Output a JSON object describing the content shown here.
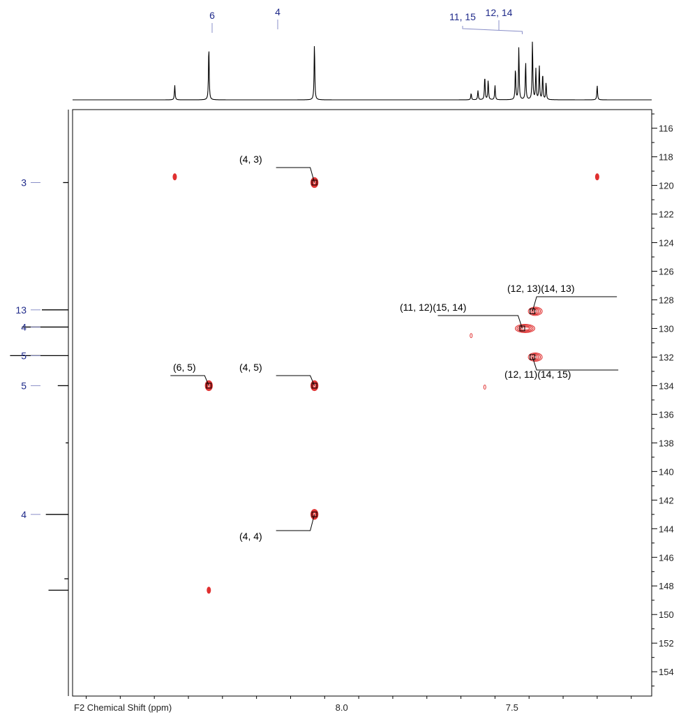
{
  "chart_data": {
    "type": "scatter",
    "title": "",
    "xlabel": "F2 Chemical Shift (ppm)",
    "ylabel": "",
    "x_reversed": true,
    "y_reversed": true,
    "xlim": [
      8.79,
      7.09
    ],
    "ylim": [
      114.7,
      155.7
    ],
    "x_major_ticks": [
      8.0,
      7.5
    ],
    "x_tick_labels": [
      "8.0",
      "7.5"
    ],
    "y_ticks": [
      116,
      118,
      120,
      122,
      124,
      126,
      128,
      130,
      132,
      134,
      136,
      138,
      140,
      142,
      144,
      146,
      148,
      150,
      152,
      154
    ],
    "y_tick_labels": [
      "116",
      "118",
      "120",
      "122",
      "124",
      "126",
      "128",
      "130",
      "132",
      "134",
      "136",
      "138",
      "140",
      "142",
      "144",
      "146",
      "148",
      "150",
      "152",
      "154"
    ],
    "grid": false,
    "contour_color": "#e03030",
    "marker_color": "#000000",
    "assignment_color": "#1f2a8a",
    "cross_peaks": [
      {
        "x": 8.08,
        "y": 119.8,
        "label": "(4, 3)",
        "assigned": true
      },
      {
        "x": 8.39,
        "y": 134.0,
        "label": "(6, 5)",
        "assigned": true
      },
      {
        "x": 8.08,
        "y": 134.0,
        "label": "(4, 5)",
        "assigned": true
      },
      {
        "x": 8.08,
        "y": 143.0,
        "label": "(4, 4)",
        "assigned": true
      },
      {
        "x": 7.44,
        "y": 128.8,
        "label": "(12, 13)(14, 13)",
        "assigned": true
      },
      {
        "x": 7.47,
        "y": 130.0,
        "label": "(11, 12)(15, 14)",
        "assigned": true
      },
      {
        "x": 7.44,
        "y": 132.0,
        "label": "(12, 11)(14, 15)",
        "assigned": true
      },
      {
        "x": 8.49,
        "y": 119.4,
        "label": "",
        "assigned": false
      },
      {
        "x": 7.25,
        "y": 119.4,
        "label": "",
        "assigned": false
      },
      {
        "x": 8.39,
        "y": 148.3,
        "label": "",
        "assigned": false
      },
      {
        "x": 7.58,
        "y": 134.1,
        "label": "",
        "assigned": false
      },
      {
        "x": 7.62,
        "y": 130.5,
        "label": "",
        "assigned": false
      }
    ],
    "f2_assignments": [
      {
        "label": "6",
        "x": 8.39
      },
      {
        "label": "4",
        "x": 8.08
      },
      {
        "label": "11, 15",
        "x": 7.47
      },
      {
        "label": "12, 14",
        "x": 7.44
      }
    ],
    "f1_assignments": [
      {
        "label": "3",
        "y": 119.8
      },
      {
        "label": "13",
        "y": 128.7
      },
      {
        "label": "4",
        "y": 129.9
      },
      {
        "label": "5",
        "y": 131.9
      },
      {
        "label": "5",
        "y": 134.0
      },
      {
        "label": "4",
        "y": 143.0
      }
    ],
    "f2_spectrum_peaks": [
      {
        "x": 8.49,
        "h": 0.22
      },
      {
        "x": 8.39,
        "h": 0.82
      },
      {
        "x": 8.08,
        "h": 0.86
      },
      {
        "x": 7.62,
        "h": 0.1
      },
      {
        "x": 7.6,
        "h": 0.14
      },
      {
        "x": 7.58,
        "h": 0.36
      },
      {
        "x": 7.57,
        "h": 0.3
      },
      {
        "x": 7.55,
        "h": 0.22
      },
      {
        "x": 7.49,
        "h": 0.48
      },
      {
        "x": 7.48,
        "h": 0.8
      },
      {
        "x": 7.46,
        "h": 0.58
      },
      {
        "x": 7.44,
        "h": 0.9
      },
      {
        "x": 7.43,
        "h": 0.46
      },
      {
        "x": 7.42,
        "h": 0.52
      },
      {
        "x": 7.41,
        "h": 0.4
      },
      {
        "x": 7.4,
        "h": 0.26
      },
      {
        "x": 7.25,
        "h": 0.22
      }
    ],
    "f1_spectrum_peaks": [
      {
        "y": 119.8,
        "h": 0.08
      },
      {
        "y": 128.7,
        "h": 0.4
      },
      {
        "y": 129.9,
        "h": 0.7
      },
      {
        "y": 131.9,
        "h": 0.88
      },
      {
        "y": 134.0,
        "h": 0.16
      },
      {
        "y": 138.0,
        "h": 0.04
      },
      {
        "y": 143.0,
        "h": 0.34
      },
      {
        "y": 147.5,
        "h": 0.06
      },
      {
        "y": 148.3,
        "h": 0.3
      }
    ]
  }
}
